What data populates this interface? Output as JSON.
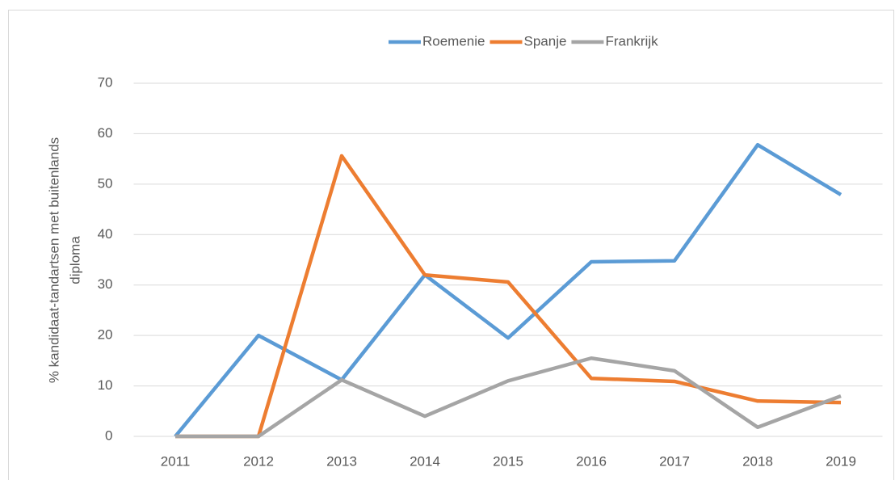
{
  "chart_data": {
    "type": "line",
    "ylabel": [
      "% kandidaat-tandartsen met buitenlands",
      "diploma"
    ],
    "categories": [
      "2011",
      "2012",
      "2013",
      "2014",
      "2015",
      "2016",
      "2017",
      "2018",
      "2019"
    ],
    "series": [
      {
        "name": "Roemenie",
        "color": "#5b9bd5",
        "values": [
          0,
          20,
          11.2,
          32,
          19.5,
          34.6,
          34.8,
          57.8,
          47.9
        ]
      },
      {
        "name": "Spanje",
        "color": "#ed7d31",
        "values": [
          0,
          0,
          55.6,
          32,
          30.6,
          11.5,
          10.9,
          7,
          6.7
        ]
      },
      {
        "name": "Frankrijk",
        "color": "#a5a5a5",
        "values": [
          0,
          0,
          11.2,
          4,
          11,
          15.5,
          13,
          1.8,
          8
        ]
      }
    ],
    "ylim": [
      0,
      70
    ],
    "yticks": [
      0,
      10,
      20,
      30,
      40,
      50,
      60,
      70
    ],
    "grid": true,
    "legend": "top"
  }
}
